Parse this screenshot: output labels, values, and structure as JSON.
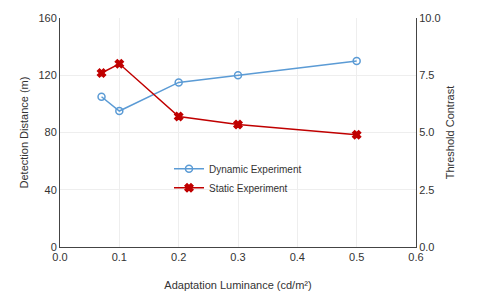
{
  "chart_data": {
    "type": "line",
    "xlabel": "Adaptation Luminance (cd/m²)",
    "ylabel": "Detection Distance (m)",
    "y2label": "Threshold Contrast",
    "series": [
      {
        "name": "Dynamic Experiment",
        "color": "#5B9BD5",
        "marker": "circle-open",
        "x": [
          0.07,
          0.1,
          0.2,
          0.3,
          0.5
        ],
        "values": [
          105,
          95,
          115,
          120,
          130
        ]
      },
      {
        "name": "Static Experiment",
        "color": "#C00000",
        "marker": "x",
        "axis": "y2",
        "x": [
          0.07,
          0.1,
          0.2,
          0.3,
          0.5
        ],
        "values": [
          7.6,
          8.0,
          5.7,
          5.35,
          4.9
        ]
      }
    ],
    "xlim": [
      0,
      0.6
    ],
    "xticks": [
      {
        "value": 0,
        "label": "0.0"
      },
      0.1,
      0.2,
      0.3,
      0.4,
      0.5,
      0.6
    ],
    "ylim": [
      0,
      160
    ],
    "yticks": [
      0,
      40,
      80,
      120,
      160
    ],
    "y2lim": [
      0,
      10
    ],
    "y2ticks": [
      {
        "value": 0,
        "label": "0.0"
      },
      2.5,
      {
        "value": 5,
        "label": "5.0"
      },
      7.5,
      {
        "value": 10,
        "label": "10.0"
      }
    ],
    "grid": true,
    "legend": "lower center"
  }
}
